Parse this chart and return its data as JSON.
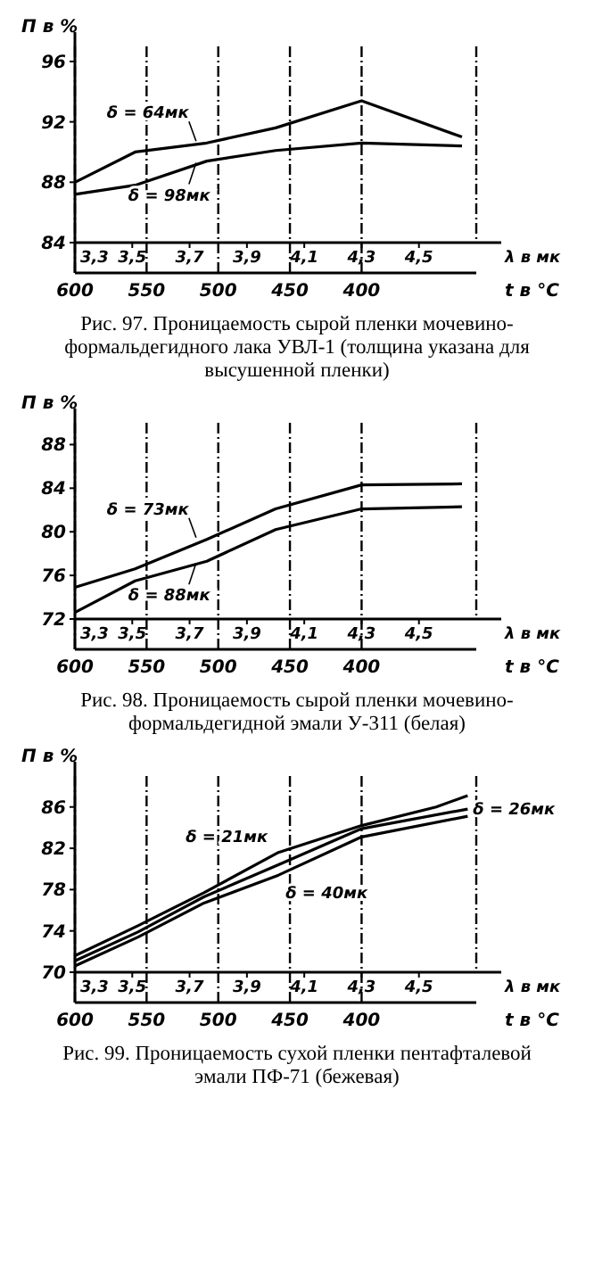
{
  "chart_data": [
    {
      "type": "line",
      "ylabel": "П в %",
      "xlabel": "λ в мк",
      "x2label": "t в °C",
      "xlim": [
        3.3,
        4.7
      ],
      "xticks": [
        {
          "value": 3.3,
          "label": "3,3"
        },
        {
          "value": 3.5,
          "label": "3,5"
        },
        {
          "value": 3.7,
          "label": "3,7"
        },
        {
          "value": 3.9,
          "label": "3,9"
        },
        {
          "value": 4.1,
          "label": "4,1"
        },
        {
          "value": 4.3,
          "label": "4,3"
        },
        {
          "value": 4.5,
          "label": "4,5"
        }
      ],
      "x2lim": [
        600,
        320
      ],
      "x2ticks": [
        600,
        550,
        500,
        450,
        400
      ],
      "ylim": [
        84,
        97
      ],
      "yticks": [
        84,
        88,
        92,
        96
      ],
      "grid": "x",
      "annotations": [
        "Рис. 97. Проницаемость сырой пленки мочевино-формальдегидного лака УВЛ-1 (толщина указана для высушенной пленки)"
      ],
      "series": [
        {
          "name": "δ = 64мк",
          "color": "#000000",
          "x": [
            3.3,
            3.51,
            3.76,
            4.0,
            4.3,
            4.65
          ],
          "values": [
            88.0,
            90.0,
            90.6,
            91.6,
            93.4,
            91.0
          ]
        },
        {
          "name": "δ = 98мк",
          "color": "#000000",
          "x": [
            3.3,
            3.51,
            3.76,
            4.0,
            4.3,
            4.65
          ],
          "values": [
            87.2,
            87.8,
            89.4,
            90.1,
            90.6,
            90.4
          ]
        }
      ]
    },
    {
      "type": "line",
      "ylabel": "П в %",
      "xlabel": "λ в мк",
      "x2label": "t в °C",
      "xlim": [
        3.3,
        4.7
      ],
      "xticks": [
        {
          "value": 3.3,
          "label": "3,3"
        },
        {
          "value": 3.5,
          "label": "3,5"
        },
        {
          "value": 3.7,
          "label": "3,7"
        },
        {
          "value": 3.9,
          "label": "3,9"
        },
        {
          "value": 4.1,
          "label": "4,1"
        },
        {
          "value": 4.3,
          "label": "4,3"
        },
        {
          "value": 4.5,
          "label": "4,5"
        }
      ],
      "x2lim": [
        600,
        320
      ],
      "x2ticks": [
        600,
        550,
        500,
        450,
        400
      ],
      "ylim": [
        72,
        90
      ],
      "yticks": [
        72,
        76,
        80,
        84,
        88
      ],
      "grid": "x",
      "annotations": [
        "Рис. 98. Проницаемость сырой пленки мочевино-формальдегидной эмали У-311 (белая)"
      ],
      "series": [
        {
          "name": "δ = 73мк",
          "color": "#000000",
          "x": [
            3.3,
            3.51,
            3.76,
            4.0,
            4.3,
            4.65
          ],
          "values": [
            74.9,
            76.6,
            79.3,
            82.1,
            84.3,
            84.4
          ]
        },
        {
          "name": "δ = 88мк",
          "color": "#000000",
          "x": [
            3.3,
            3.51,
            3.76,
            4.0,
            4.3,
            4.65
          ],
          "values": [
            72.6,
            75.5,
            77.3,
            80.2,
            82.1,
            82.3
          ]
        }
      ]
    },
    {
      "type": "line",
      "ylabel": "П в %",
      "xlabel": "λ в мк",
      "x2label": "t в °C",
      "xlim": [
        3.3,
        4.7
      ],
      "xticks": [
        {
          "value": 3.3,
          "label": "3,3"
        },
        {
          "value": 3.5,
          "label": "3,5"
        },
        {
          "value": 3.7,
          "label": "3,7"
        },
        {
          "value": 3.9,
          "label": "3,9"
        },
        {
          "value": 4.1,
          "label": "4,1"
        },
        {
          "value": 4.3,
          "label": "4,3"
        },
        {
          "value": 4.5,
          "label": "4,5"
        }
      ],
      "x2lim": [
        600,
        320
      ],
      "x2ticks": [
        600,
        550,
        500,
        450,
        400
      ],
      "ylim": [
        70,
        89
      ],
      "yticks": [
        70,
        74,
        78,
        82,
        86
      ],
      "grid": "x",
      "annotations": [
        "Рис. 99. Проницаемость сухой пленки пентафталевой эмали ПФ-71 (бежевая)"
      ],
      "series": [
        {
          "name": "δ = 21мк",
          "color": "#000000",
          "x": [
            3.3,
            3.52,
            3.75,
            4.01,
            4.3,
            4.56,
            4.67
          ],
          "values": [
            71.6,
            74.5,
            77.7,
            81.6,
            84.2,
            86.0,
            87.1
          ]
        },
        {
          "name": "δ = 26мк",
          "color": "#000000",
          "x": [
            3.3,
            3.52,
            3.75,
            4.01,
            4.3,
            4.67
          ],
          "values": [
            71.1,
            73.9,
            77.3,
            80.4,
            83.9,
            85.8
          ]
        },
        {
          "name": "δ = 40мк",
          "color": "#000000",
          "x": [
            3.3,
            3.52,
            3.75,
            4.01,
            4.3,
            4.67
          ],
          "values": [
            70.6,
            73.4,
            76.7,
            79.4,
            83.1,
            85.1
          ]
        }
      ]
    }
  ]
}
